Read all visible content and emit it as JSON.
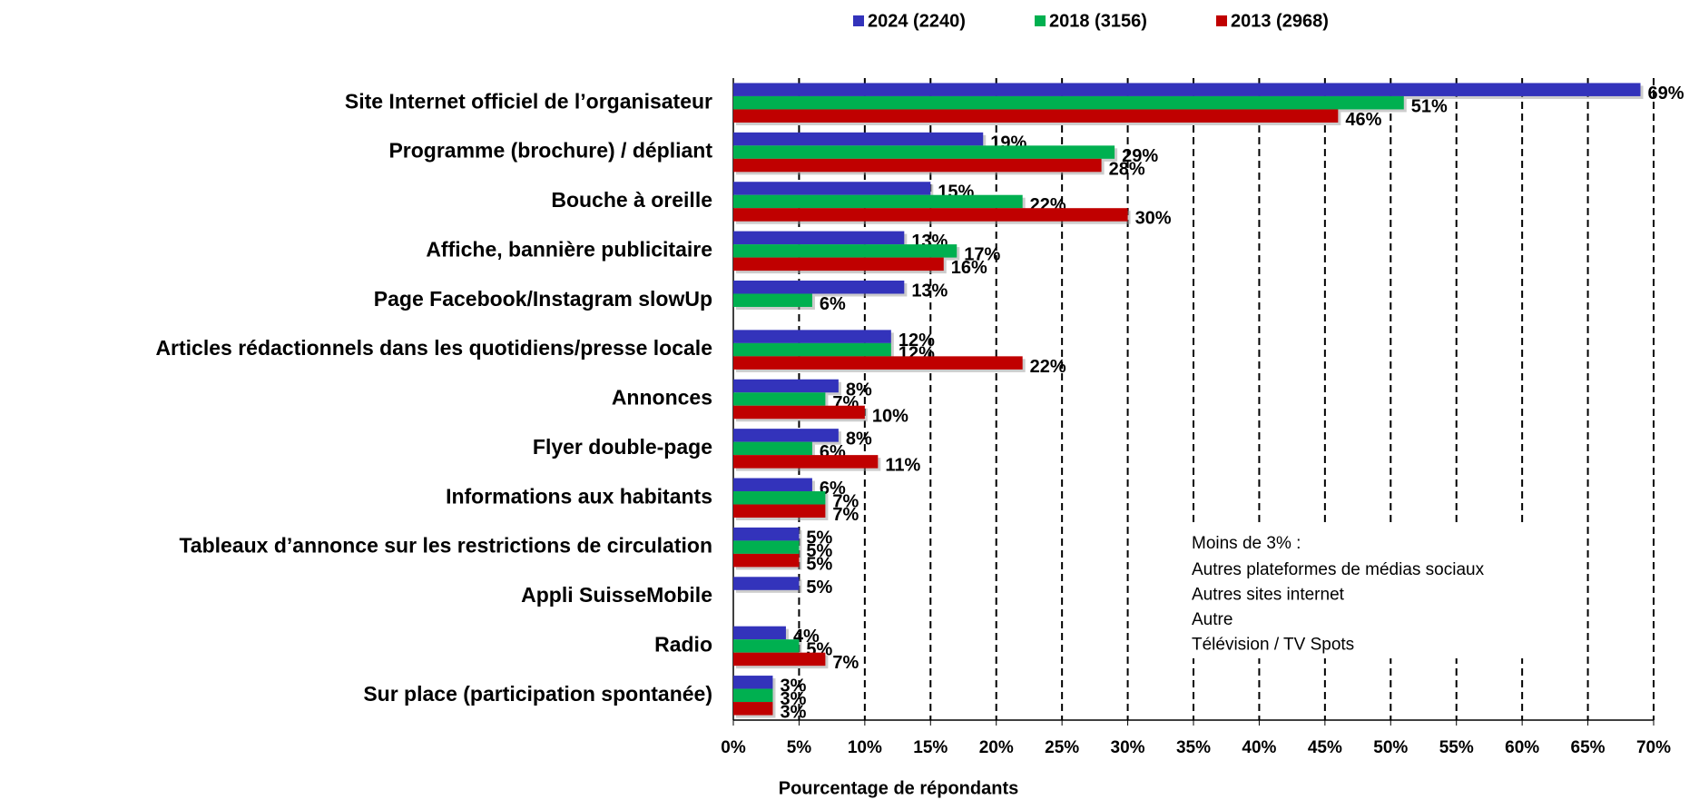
{
  "chart_data": {
    "type": "bar",
    "orientation": "horizontal",
    "x_label": "Pourcentage de répondants",
    "categories": [
      "Site Internet officiel de l’organisateur",
      "Programme (brochure) / dépliant",
      "Bouche à oreille",
      "Affiche, bannière publicitaire",
      "Page Facebook/Instagram slowUp",
      "Articles rédactionnels dans les quotidiens/presse locale",
      "Annonces",
      "Flyer double-page",
      "Informations aux habitants",
      "Tableaux d’annonce sur les restrictions de circulation",
      "Appli SuisseMobile",
      "Radio",
      "Sur place (participation spontanée)"
    ],
    "series": [
      {
        "name": "2024 (2240)",
        "color": "#3333bb",
        "values": [
          69,
          19,
          15,
          13,
          13,
          12,
          8,
          8,
          6,
          5,
          5,
          4,
          3
        ],
        "value_labels": [
          "69%",
          "19%",
          "15%",
          "13%",
          "13%",
          "12%",
          "8%",
          "8%",
          "6%",
          "5%",
          "5%",
          "4%",
          "3%"
        ]
      },
      {
        "name": "2018 (3156)",
        "color": "#00b050",
        "values": [
          51,
          29,
          22,
          17,
          6,
          12,
          7,
          6,
          7,
          5,
          null,
          5,
          3
        ],
        "value_labels": [
          "51%",
          "29%",
          "22%",
          "17%",
          "6%",
          "12%",
          "7%",
          "6%",
          "7%",
          "5%",
          null,
          "5%",
          "3%"
        ]
      },
      {
        "name": "2013 (2968)",
        "color": "#c00000",
        "values": [
          46,
          28,
          30,
          16,
          null,
          22,
          10,
          11,
          7,
          5,
          null,
          7,
          3
        ],
        "value_labels": [
          "46%",
          "28%",
          "30%",
          "16%",
          null,
          "22%",
          "10%",
          "11%",
          "7%",
          "5%",
          null,
          "7%",
          "3%"
        ]
      }
    ],
    "xlim": [
      0,
      70
    ],
    "xticks": [
      {
        "value": 0,
        "label": "0%"
      },
      {
        "value": 5,
        "label": "5%"
      },
      {
        "value": 10,
        "label": "10%"
      },
      {
        "value": 15,
        "label": "15%"
      },
      {
        "value": 20,
        "label": "20%"
      },
      {
        "value": 25,
        "label": "25%"
      },
      {
        "value": 30,
        "label": "30%"
      },
      {
        "value": 35,
        "label": "35%"
      },
      {
        "value": 40,
        "label": "40%"
      },
      {
        "value": 45,
        "label": "45%"
      },
      {
        "value": 50,
        "label": "50%"
      },
      {
        "value": 55,
        "label": "55%"
      },
      {
        "value": 60,
        "label": "60%"
      },
      {
        "value": 65,
        "label": "65%"
      },
      {
        "value": 70,
        "label": "70%"
      }
    ],
    "grid": true,
    "legend": "top",
    "annotation": {
      "title": "Moins de 3% :",
      "lines": [
        "Autres plateformes de médias sociaux",
        "Autres sites internet",
        "Autre",
        "Télévision / TV Spots"
      ]
    }
  }
}
